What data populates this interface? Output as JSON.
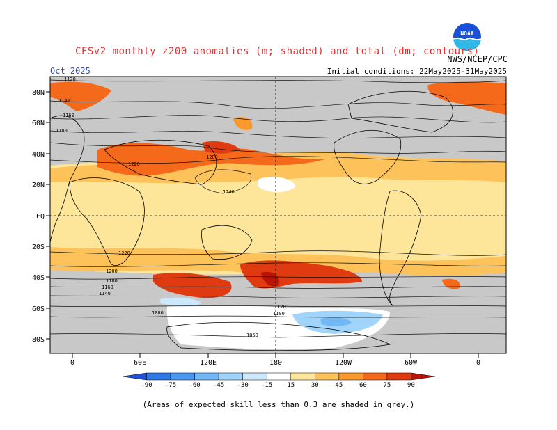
{
  "header": {
    "title": "CFSv2 monthly z200 anomalies (m; shaded) and total (dm; contours)",
    "month": "Oct 2025",
    "agency": "NWS/NCEP/CPC",
    "initial_conditions": "Initial conditions: 22May2025-31May2025",
    "logo_text": "NOAA"
  },
  "axes": {
    "lat_labels": [
      "80N",
      "60N",
      "40N",
      "20N",
      "EQ",
      "20S",
      "40S",
      "60S",
      "80S"
    ],
    "lon_labels": [
      "0",
      "60E",
      "120E",
      "180",
      "120W",
      "60W",
      "0"
    ]
  },
  "contours": {
    "labels": [
      "1120",
      "1140",
      "1160",
      "1180",
      "1200",
      "1220",
      "1240",
      "1220",
      "1200",
      "1180",
      "1160",
      "1140",
      "1120",
      "1100",
      "1080",
      "1060"
    ]
  },
  "colorbar": {
    "ticks": [
      "-90",
      "-75",
      "-60",
      "-45",
      "-30",
      "-15",
      "15",
      "30",
      "45",
      "60",
      "75",
      "90"
    ],
    "colors": [
      "#1e50d8",
      "#2f78e8",
      "#4a98f0",
      "#72b8f5",
      "#a0d4fa",
      "#cde8fb",
      "#ffffff",
      "#fde59a",
      "#fdc25a",
      "#fb9a2c",
      "#f46a1a",
      "#e03a10",
      "#b81408"
    ]
  },
  "footnote": "(Areas of expected skill less than 0.3 are shaded in grey.)"
}
